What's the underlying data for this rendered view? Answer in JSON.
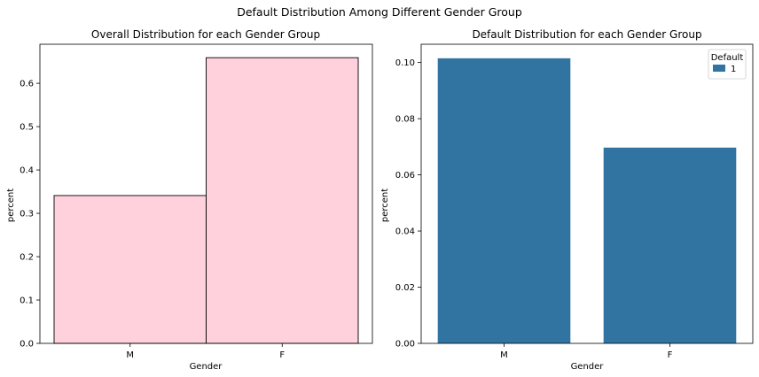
{
  "suptitle": "Default Distribution Among Different Gender Group",
  "chart_data": [
    {
      "type": "bar",
      "title": "Overall Distribution for each Gender Group",
      "xlabel": "Gender",
      "ylabel": "percent",
      "categories": [
        "M",
        "F"
      ],
      "values": [
        0.341,
        0.659
      ],
      "ylim": [
        0,
        0.69
      ],
      "yticks": [
        0.0,
        0.1,
        0.2,
        0.3,
        0.4,
        0.5,
        0.6
      ],
      "ytick_labels": [
        "0.0",
        "0.1",
        "0.2",
        "0.3",
        "0.4",
        "0.5",
        "0.6"
      ],
      "bar_color": "#ffd1dc",
      "bar_edge": "#000000",
      "grid": false
    },
    {
      "type": "bar",
      "title": "Default Distribution for each Gender Group",
      "xlabel": "Gender",
      "ylabel": "percent",
      "categories": [
        "M",
        "F"
      ],
      "series": [
        {
          "name": "1",
          "values": [
            0.1015,
            0.0697
          ]
        }
      ],
      "ylim": [
        0,
        0.1065
      ],
      "yticks": [
        0.0,
        0.02,
        0.04,
        0.06,
        0.08,
        0.1
      ],
      "ytick_labels": [
        "0.00",
        "0.02",
        "0.04",
        "0.06",
        "0.08",
        "0.10"
      ],
      "bar_color": "#3274a1",
      "legend": {
        "title": "Default",
        "placement": "top-right"
      },
      "grid": false
    }
  ]
}
